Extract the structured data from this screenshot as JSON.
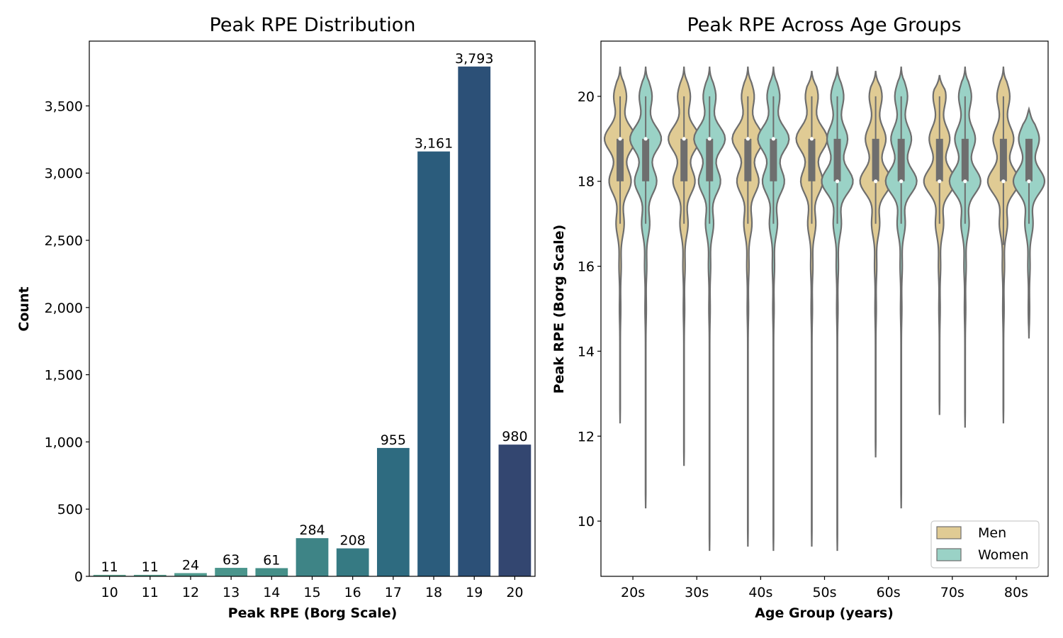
{
  "chart_data": [
    {
      "type": "bar",
      "title": "Peak RPE Distribution",
      "xlabel": "Peak RPE (Borg Scale)",
      "ylabel": "Count",
      "categories": [
        "10",
        "11",
        "12",
        "13",
        "14",
        "15",
        "16",
        "17",
        "18",
        "19",
        "20"
      ],
      "values": [
        11,
        11,
        24,
        63,
        61,
        284,
        208,
        955,
        3161,
        3793,
        980
      ],
      "data_labels": [
        "11",
        "11",
        "24",
        "63",
        "61",
        "284",
        "208",
        "955",
        "3,161",
        "3,793",
        "980"
      ],
      "ylim": [
        0,
        3982
      ],
      "yticks": [
        0,
        500,
        1000,
        1500,
        2000,
        2500,
        3000,
        3500
      ],
      "ytick_labels": [
        "0",
        "500",
        "1,000",
        "1,500",
        "2,000",
        "2,500",
        "3,000",
        "3,500"
      ],
      "grid": false,
      "colors": [
        "#5fa38f",
        "#58a08f",
        "#519b8f",
        "#4a958c",
        "#448f88",
        "#3e8486",
        "#367a83",
        "#2e6b80",
        "#2b5c7c",
        "#2c5077",
        "#334670"
      ]
    },
    {
      "type": "violin",
      "title": "Peak RPE Across Age Groups",
      "xlabel": "Age Group (years)",
      "ylabel": "Peak RPE (Borg Scale)",
      "categories": [
        "20s",
        "30s",
        "40s",
        "50s",
        "60s",
        "70s",
        "80s"
      ],
      "ylim": [
        8.7,
        21.3
      ],
      "yticks": [
        10,
        12,
        14,
        16,
        18,
        20
      ],
      "legend_position": "bottom-right",
      "grid": false,
      "series": [
        {
          "name": "Men",
          "color": "#e0cb94",
          "min": [
            12.3,
            11.3,
            9.4,
            9.4,
            11.5,
            12.5,
            12.3
          ],
          "max": [
            20.7,
            20.7,
            20.7,
            20.6,
            20.6,
            20.5,
            20.7
          ],
          "q1": [
            18,
            18,
            18,
            18,
            18,
            18,
            18
          ],
          "median": [
            19,
            19,
            19,
            19,
            18,
            18,
            18
          ],
          "q3": [
            19,
            19,
            19,
            19,
            19,
            19,
            19
          ],
          "whisker_low": [
            17,
            17,
            17,
            17,
            17,
            17,
            16.5
          ],
          "whisker_high": [
            20,
            20,
            20,
            20,
            20,
            20,
            20
          ]
        },
        {
          "name": "Women",
          "color": "#9ad2c6",
          "min": [
            10.3,
            9.3,
            9.3,
            9.3,
            10.3,
            12.2,
            14.3
          ],
          "max": [
            20.7,
            20.7,
            20.7,
            20.7,
            20.7,
            20.7,
            19.7
          ],
          "q1": [
            18,
            18,
            18,
            18,
            18,
            18,
            18
          ],
          "median": [
            19,
            19,
            19,
            18,
            18,
            18,
            18
          ],
          "q3": [
            19,
            19,
            19,
            19,
            19,
            19,
            19
          ],
          "whisker_low": [
            17,
            17,
            17,
            17,
            17,
            17,
            17
          ],
          "whisker_high": [
            20,
            20,
            20,
            20,
            20,
            20,
            19
          ]
        }
      ]
    }
  ]
}
